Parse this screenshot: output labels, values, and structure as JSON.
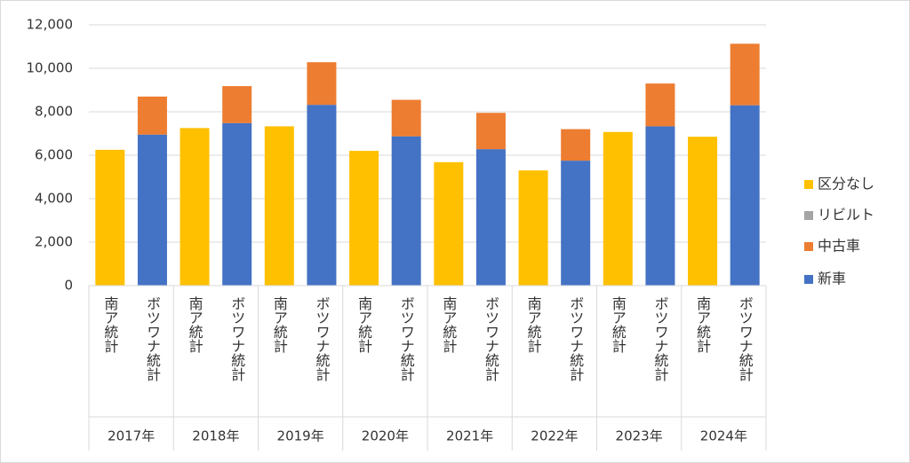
{
  "chart_data": {
    "type": "stacked_bar",
    "categories": [
      "南ア統計",
      "ボツワナ統計",
      "南ア統計",
      "ボツワナ統計",
      "南ア統計",
      "ボツワナ統計",
      "南ア統計",
      "ボツワナ統計",
      "南ア統計",
      "ボツワナ統計",
      "南ア統計",
      "ボツワナ統計",
      "南ア統計",
      "ボツワナ統計",
      "南ア統計",
      "ボツワナ統計"
    ],
    "groups": [
      "2017年",
      "2018年",
      "2019年",
      "2020年",
      "2021年",
      "2022年",
      "2023年",
      "2024年"
    ],
    "series": [
      {
        "name": "新車",
        "color": "#4472c4",
        "values": [
          null,
          6950,
          null,
          7480,
          null,
          8320,
          null,
          6870,
          null,
          6280,
          null,
          5750,
          null,
          7330,
          null,
          8300
        ]
      },
      {
        "name": "中古車",
        "color": "#ed7d31",
        "values": [
          null,
          1750,
          null,
          1700,
          null,
          1960,
          null,
          1680,
          null,
          1670,
          null,
          1450,
          null,
          1970,
          null,
          2830
        ]
      },
      {
        "name": "リビルト",
        "color": "#a5a5a5",
        "values": [
          null,
          null,
          null,
          null,
          null,
          null,
          null,
          null,
          null,
          null,
          null,
          null,
          null,
          null,
          null,
          null
        ]
      },
      {
        "name": "区分なし",
        "color": "#ffc000",
        "values": [
          6250,
          null,
          7250,
          null,
          7330,
          null,
          6200,
          null,
          5680,
          null,
          5300,
          null,
          7070,
          null,
          6850,
          null
        ]
      }
    ],
    "ylim": [
      0,
      12000
    ],
    "yticks": [
      0,
      {
        "value": 2000,
        "label": "2,000"
      },
      {
        "value": 4000,
        "label": "4,000"
      },
      {
        "value": 6000,
        "label": "6,000"
      },
      {
        "value": 8000,
        "label": "8,000"
      },
      {
        "value": 10000,
        "label": "10,000"
      },
      {
        "value": 12000,
        "label": "12,000"
      }
    ],
    "grid": true,
    "legend": "right"
  }
}
